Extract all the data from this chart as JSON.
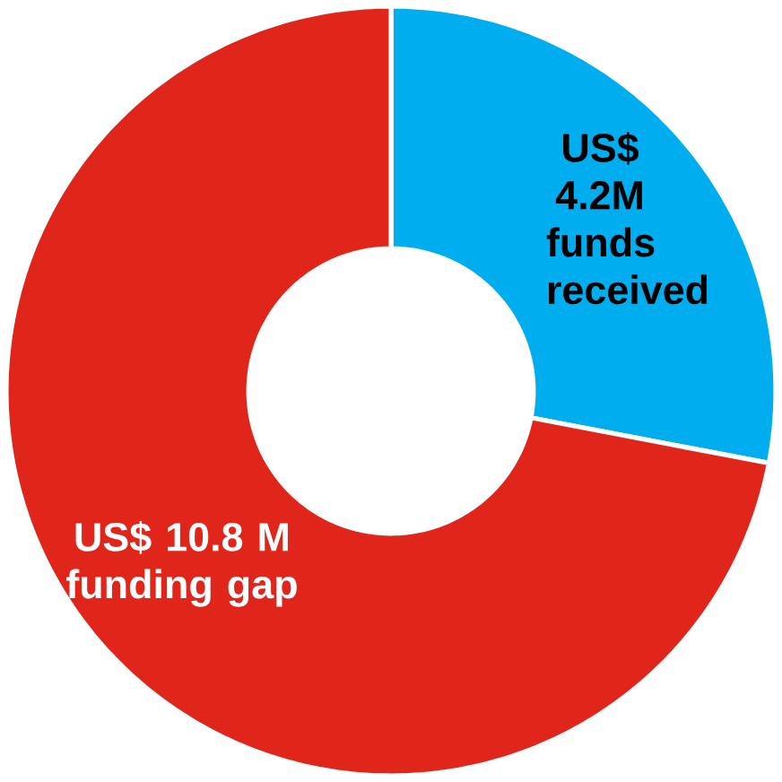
{
  "chart_data": {
    "type": "donut",
    "categories": [
      "funds received",
      "funding gap"
    ],
    "values": [
      4.2,
      10.8
    ],
    "value_labels": [
      "US$ 4.2M",
      "US$ 10.8 M"
    ],
    "colors": [
      "#00aeef",
      "#e0251b"
    ]
  }
}
